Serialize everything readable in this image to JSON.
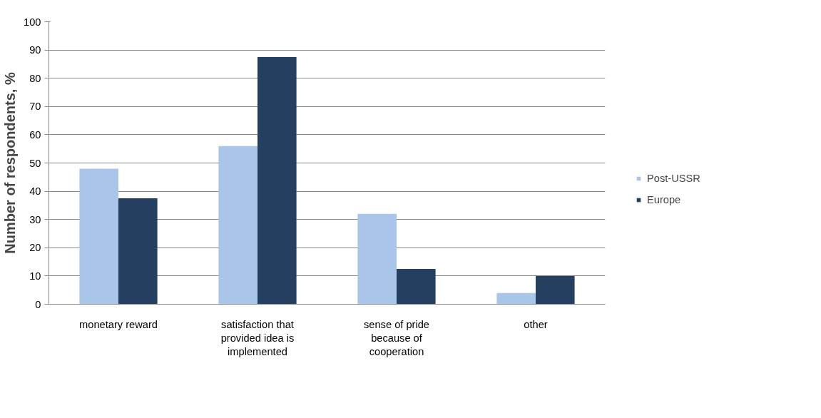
{
  "chart_data": {
    "type": "bar",
    "ylabel": "Number of respondents, %",
    "categories": [
      "monetary reward",
      "satisfaction that provided idea is implemented",
      "sense of pride because of cooperation",
      "other"
    ],
    "series": [
      {
        "name": "Post-USSR",
        "color": "#a9c5ea",
        "values": [
          48,
          56,
          32,
          4
        ]
      },
      {
        "name": "Europe",
        "color": "#243f60",
        "values": [
          37.5,
          87.5,
          12.5,
          10
        ]
      }
    ],
    "ylim": [
      0,
      100
    ],
    "yticks": [
      0,
      10,
      20,
      30,
      40,
      50,
      60,
      70,
      80,
      90,
      100
    ],
    "grid": "y",
    "legend": "right"
  }
}
